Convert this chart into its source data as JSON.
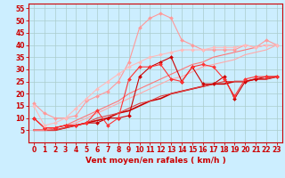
{
  "title": "Vent moyen/en rafales ( km/h )",
  "bg_color": "#cceeff",
  "grid_color": "#aacccc",
  "xlim": [
    -0.5,
    23.5
  ],
  "ylim": [
    0,
    57
  ],
  "yticks": [
    5,
    10,
    15,
    20,
    25,
    30,
    35,
    40,
    45,
    50,
    55
  ],
  "xticks": [
    0,
    1,
    2,
    3,
    4,
    5,
    6,
    7,
    8,
    9,
    10,
    11,
    12,
    13,
    14,
    15,
    16,
    17,
    18,
    19,
    20,
    21,
    22,
    23
  ],
  "lines": [
    {
      "x": [
        0,
        1,
        2,
        3,
        4,
        5,
        6,
        7,
        8,
        9,
        10,
        11,
        12,
        13,
        14,
        15,
        16,
        17,
        18,
        19,
        20,
        21,
        22,
        23
      ],
      "y": [
        10,
        6,
        6,
        7,
        7,
        8,
        8,
        10,
        10,
        11,
        27,
        31,
        33,
        35,
        25,
        31,
        24,
        24,
        27,
        18,
        25,
        26,
        27,
        27
      ],
      "color": "#cc0000",
      "lw": 0.8,
      "marker": "D",
      "ms": 2.0
    },
    {
      "x": [
        0,
        1,
        2,
        3,
        4,
        5,
        6,
        7,
        8,
        9,
        10,
        11,
        12,
        13,
        14,
        15,
        16,
        17,
        18,
        19,
        20,
        21,
        22,
        23
      ],
      "y": [
        10,
        6,
        6,
        7,
        7,
        8,
        13,
        7,
        10,
        26,
        31,
        31,
        32,
        26,
        25,
        31,
        32,
        31,
        26,
        19,
        26,
        27,
        27,
        27
      ],
      "color": "#ff3333",
      "lw": 0.8,
      "marker": "D",
      "ms": 2.0
    },
    {
      "x": [
        0,
        1,
        2,
        3,
        4,
        5,
        6,
        7,
        8,
        9,
        10,
        11,
        12,
        13,
        14,
        15,
        16,
        17,
        18,
        19,
        20,
        21,
        22,
        23
      ],
      "y": [
        16,
        12,
        10,
        10,
        11,
        17,
        19,
        21,
        25,
        33,
        47,
        51,
        53,
        51,
        42,
        40,
        38,
        38,
        38,
        38,
        40,
        39,
        42,
        40
      ],
      "color": "#ff9999",
      "lw": 0.8,
      "marker": "D",
      "ms": 2.0
    },
    {
      "x": [
        0,
        1,
        2,
        3,
        4,
        5,
        6,
        7,
        8,
        9,
        10,
        11,
        12,
        13,
        14,
        15,
        16,
        17,
        18,
        19,
        20,
        21,
        22,
        23
      ],
      "y": [
        15,
        7,
        8,
        10,
        14,
        18,
        22,
        25,
        28,
        31,
        33,
        35,
        36,
        37,
        38,
        38,
        38,
        39,
        39,
        39,
        40,
        39,
        40,
        40
      ],
      "color": "#ffbbbb",
      "lw": 0.8,
      "marker": "D",
      "ms": 2.0
    },
    {
      "x": [
        0,
        1,
        2,
        3,
        4,
        5,
        6,
        7,
        8,
        9,
        10,
        11,
        12,
        13,
        14,
        15,
        16,
        17,
        18,
        19,
        20,
        21,
        22,
        23
      ],
      "y": [
        5,
        5,
        5,
        6,
        7,
        8,
        9,
        10,
        12,
        13,
        15,
        17,
        18,
        20,
        21,
        22,
        23,
        24,
        24,
        25,
        25,
        26,
        26,
        27
      ],
      "color": "#cc0000",
      "lw": 1.2,
      "marker": null,
      "ms": 0
    },
    {
      "x": [
        0,
        1,
        2,
        3,
        4,
        5,
        6,
        7,
        8,
        9,
        10,
        11,
        12,
        13,
        14,
        15,
        16,
        17,
        18,
        19,
        20,
        21,
        22,
        23
      ],
      "y": [
        5,
        5,
        5,
        6,
        7,
        8,
        10,
        11,
        12,
        14,
        16,
        17,
        19,
        20,
        21,
        22,
        23,
        24,
        25,
        25,
        25,
        26,
        26,
        27
      ],
      "color": "#dd4444",
      "lw": 0.8,
      "marker": null,
      "ms": 0
    },
    {
      "x": [
        0,
        1,
        2,
        3,
        4,
        5,
        6,
        7,
        8,
        9,
        10,
        11,
        12,
        13,
        14,
        15,
        16,
        17,
        18,
        19,
        20,
        21,
        22,
        23
      ],
      "y": [
        5,
        5,
        6,
        7,
        8,
        10,
        12,
        14,
        16,
        18,
        20,
        22,
        24,
        26,
        27,
        29,
        31,
        32,
        33,
        34,
        36,
        37,
        38,
        40
      ],
      "color": "#ffaaaa",
      "lw": 0.8,
      "marker": null,
      "ms": 0
    },
    {
      "x": [
        0,
        1,
        2,
        3,
        4,
        5,
        6,
        7,
        8,
        9,
        10,
        11,
        12,
        13,
        14,
        15,
        16,
        17,
        18,
        19,
        20,
        21,
        22,
        23
      ],
      "y": [
        5,
        5,
        6,
        7,
        9,
        11,
        13,
        15,
        17,
        20,
        22,
        24,
        26,
        28,
        30,
        32,
        33,
        35,
        36,
        37,
        38,
        39,
        40,
        40
      ],
      "color": "#ff7777",
      "lw": 0.8,
      "marker": null,
      "ms": 0
    }
  ],
  "tick_color": "#cc0000",
  "label_color": "#cc0000",
  "axis_label_fontsize": 6.5,
  "tick_fontsize": 5.5
}
